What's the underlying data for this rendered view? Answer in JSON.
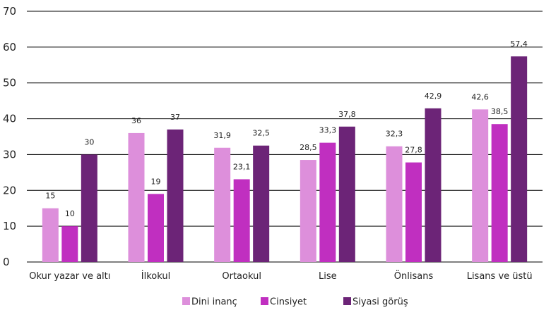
{
  "chart_data": {
    "type": "bar",
    "categories": [
      "Okur yazar ve altı",
      "İlkokul",
      "Ortaokul",
      "Lise",
      "Önlisans",
      "Lisans ve üstü"
    ],
    "series": [
      {
        "name": "Dini inanç",
        "color": "#dd8fdb",
        "values": [
          15,
          36,
          31.9,
          28.5,
          32.3,
          42.6
        ],
        "labels": [
          "15",
          "36",
          "31,9",
          "28,5",
          "32,3",
          "42,6"
        ]
      },
      {
        "name": "Cinsiyet",
        "color": "#c02fc0",
        "values": [
          10,
          19,
          23.1,
          33.3,
          27.8,
          38.5
        ],
        "labels": [
          "10",
          "19",
          "23,1",
          "33,3",
          "27,8",
          "38,5"
        ]
      },
      {
        "name": "Siyasi görüş",
        "color": "#6c2477",
        "values": [
          30,
          37,
          32.5,
          37.8,
          42.9,
          57.4
        ],
        "labels": [
          "30",
          "37",
          "32,5",
          "37,8",
          "42,9",
          "57,4"
        ]
      }
    ],
    "ylim": [
      0,
      70
    ],
    "yticks": [
      "0",
      "10",
      "20",
      "30",
      "40",
      "50",
      "60",
      "70"
    ],
    "grid": true,
    "legend_position": "bottom-center",
    "title": "",
    "xlabel": "",
    "ylabel": ""
  }
}
